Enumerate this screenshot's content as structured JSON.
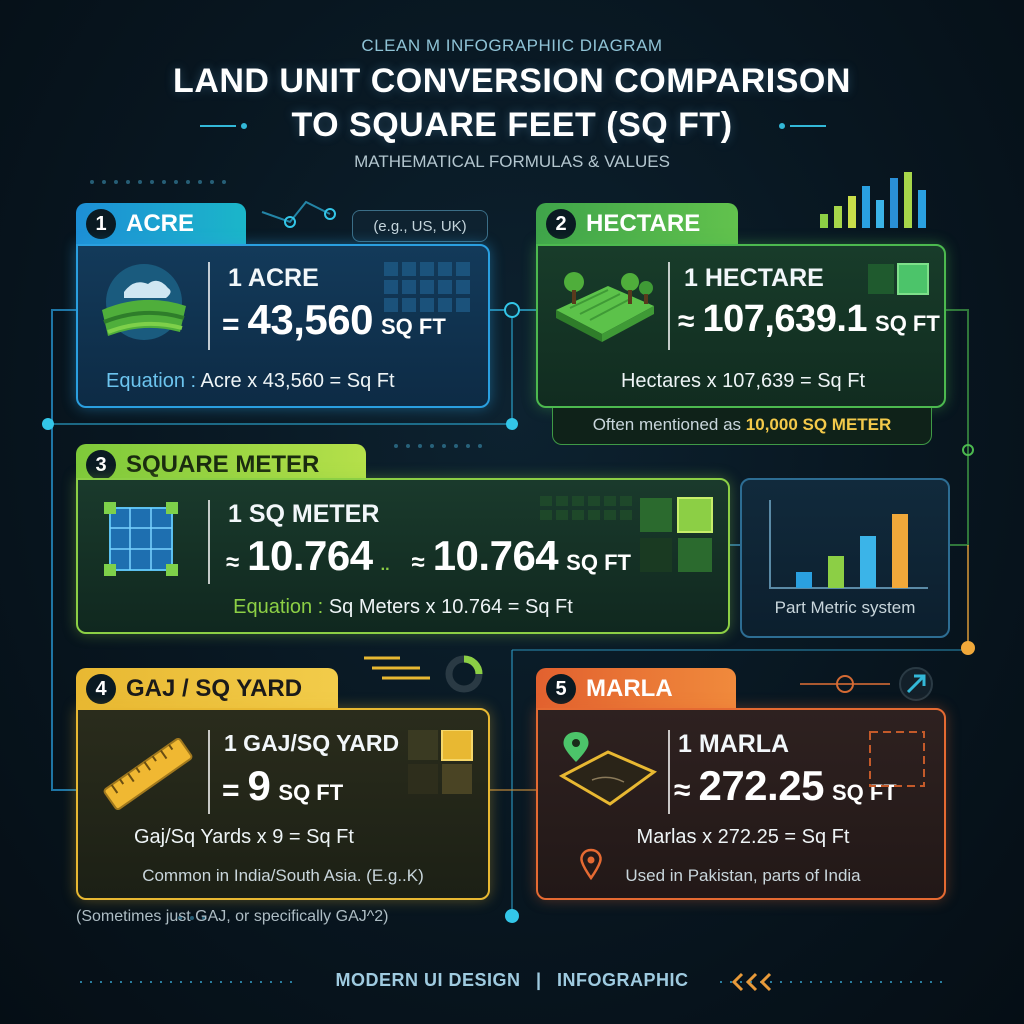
{
  "header": {
    "kicker": "CLEAN M INFOGRAPHIIC DIAGRAM",
    "title_line1": "LAND UNIT CONVERSION COMPARISON",
    "title_line2": "TO SQUARE FEET (SQ FT)",
    "subtitle": "MATHEMATICAL FORMULAS & VALUES"
  },
  "acre": {
    "number": "1",
    "name": "ACRE",
    "region": "(e.g., US, UK)",
    "unit": "1 ACRE",
    "symbol": "=",
    "value": "43,560",
    "suffix": "SQ FT",
    "equation_label": "Equation :",
    "equation": "Acre x 43,560 = Sq Ft"
  },
  "hectare": {
    "number": "2",
    "name": "HECTARE",
    "unit": "1 HECTARE",
    "symbol": "≈",
    "value": "107,639.1",
    "suffix": "SQ FT",
    "equation": "Hectares x 107,639 = Sq Ft",
    "note_prefix": "Often mentioned as",
    "note_highlight": "10,000 SQ METER"
  },
  "sqm": {
    "number": "3",
    "name": "SQUARE METER",
    "unit": "1 SQ METER",
    "symbol1": "≈",
    "value1": "10.764",
    "sep": "..",
    "symbol2": "≈",
    "value2": "10.764",
    "suffix": "SQ FT",
    "equation_label": "Equation :",
    "equation": "Sq Meters x 10.764 = Sq Ft",
    "side_note": "Part Metric system"
  },
  "gaj": {
    "number": "4",
    "name": "GAJ / SQ YARD",
    "unit": "1 GAJ/SQ YARD",
    "symbol": "=",
    "value": "9",
    "suffix": "SQ FT",
    "equation": "Gaj/Sq Yards x 9 = Sq Ft",
    "note": "Common in India/South Asia. (E.g..K)",
    "footnote": "(Sometimes just GAJ, or  specifically GAJ^2)"
  },
  "marla": {
    "number": "5",
    "name": "MARLA",
    "unit": "1 MARLA",
    "symbol": "≈",
    "value": "272.25",
    "suffix": "SQ FT",
    "equation": "Marlas x 272.25 = Sq Ft",
    "note": "Used in Pakistan, parts of India"
  },
  "footer": {
    "left": "MODERN UI DESIGN",
    "sep": "|",
    "right": "INFOGRAPHIC"
  },
  "icons": {
    "acre": "farmland-icon",
    "hectare": "field-trees-icon",
    "sqm": "grid-square-icon",
    "gaj": "ruler-icon",
    "marla": "map-plot-icon",
    "location": "location-pin-icon",
    "chart": "bar-chart-icon"
  },
  "colors": {
    "acre": "#2a9fe0",
    "hectare": "#4cb94f",
    "sqm": "#8ccf45",
    "gaj": "#e8b832",
    "marla": "#e56a32"
  }
}
